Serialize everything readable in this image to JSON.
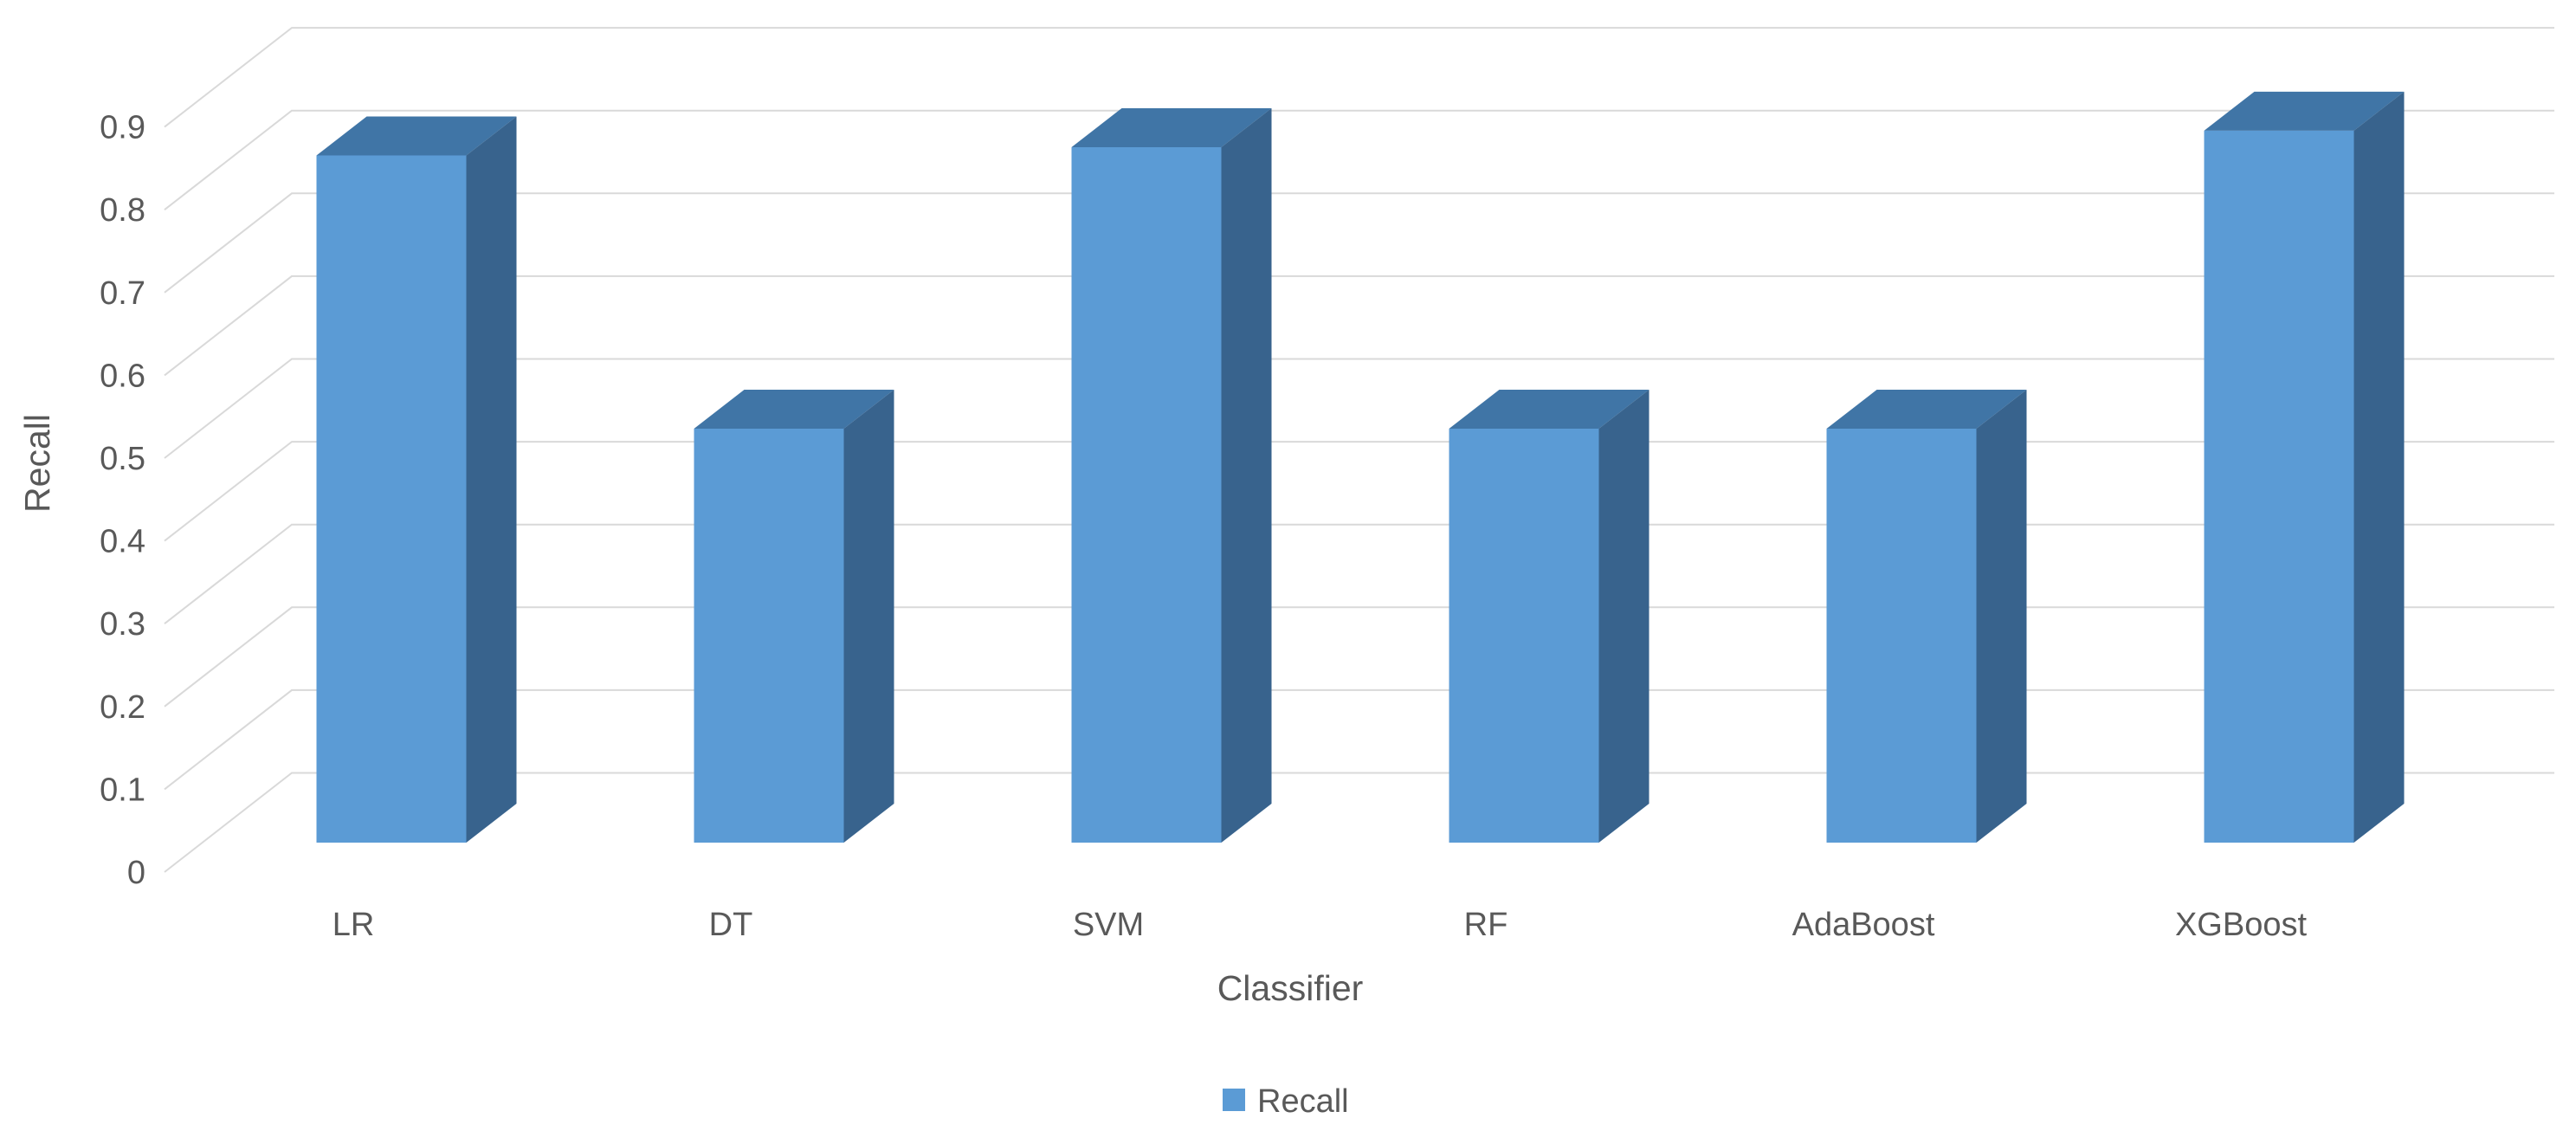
{
  "chart_data": {
    "type": "bar",
    "variant": "3d-column",
    "title": "",
    "categories": [
      "LR",
      "DT",
      "SVM",
      "RF",
      "AdaBoost",
      "XGBoost"
    ],
    "series": [
      {
        "name": "Recall",
        "values": [
          0.83,
          0.5,
          0.84,
          0.5,
          0.5,
          0.86
        ]
      }
    ],
    "xlabel": "Classifier",
    "ylabel": "Recall",
    "ylim": [
      0,
      0.9
    ],
    "ytick_values": [
      0,
      0.1,
      0.2,
      0.3,
      0.4,
      0.5,
      0.6,
      0.7,
      0.8,
      0.9
    ],
    "ytick_labels": [
      "0",
      "0.1",
      "0.2",
      "0.3",
      "0.4",
      "0.5",
      "0.6",
      "0.7",
      "0.8",
      "0.9"
    ],
    "grid": true,
    "legend": {
      "position": "bottom-center",
      "entries": [
        {
          "label": "Recall",
          "swatch_color": "#5B9BD5"
        }
      ]
    }
  },
  "colors": {
    "bar_front": "#5B9BD5",
    "bar_top": "#4075A6",
    "bar_side": "#38638D",
    "gridline": "#D9D9D9",
    "text": "#595959",
    "background": "#FFFFFF"
  }
}
